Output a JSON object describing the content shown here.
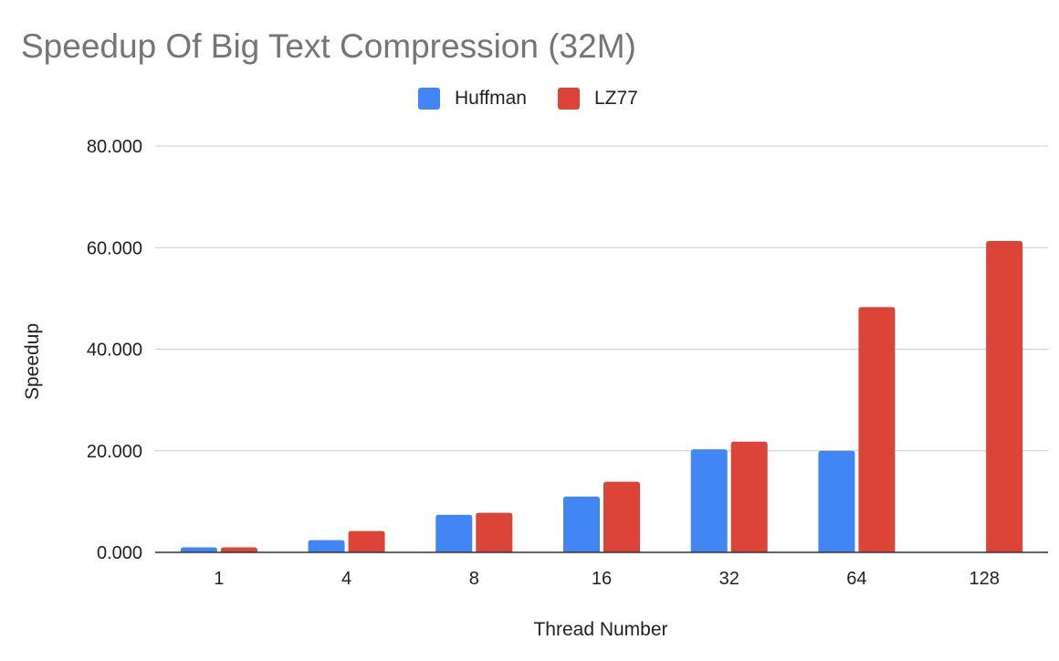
{
  "chart_data": {
    "type": "bar",
    "title": "Speedup Of Big Text Compression (32M)",
    "xlabel": "Thread Number",
    "ylabel": "Speedup",
    "categories": [
      "1",
      "4",
      "8",
      "16",
      "32",
      "64",
      "128"
    ],
    "series": [
      {
        "name": "Huffman",
        "color": "#4285f4",
        "values": [
          1.0,
          2.4,
          7.4,
          11.0,
          20.3,
          20.0,
          null
        ]
      },
      {
        "name": "LZ77",
        "color": "#db4437",
        "values": [
          1.0,
          4.2,
          7.8,
          13.9,
          21.8,
          48.3,
          61.3
        ]
      }
    ],
    "ylim": [
      0,
      80
    ],
    "yticks": [
      "0.000",
      "20.000",
      "40.000",
      "60.000",
      "80.000"
    ],
    "ytick_values": [
      0,
      20,
      40,
      60,
      80
    ],
    "grid": true,
    "legend_position": "top-center"
  }
}
